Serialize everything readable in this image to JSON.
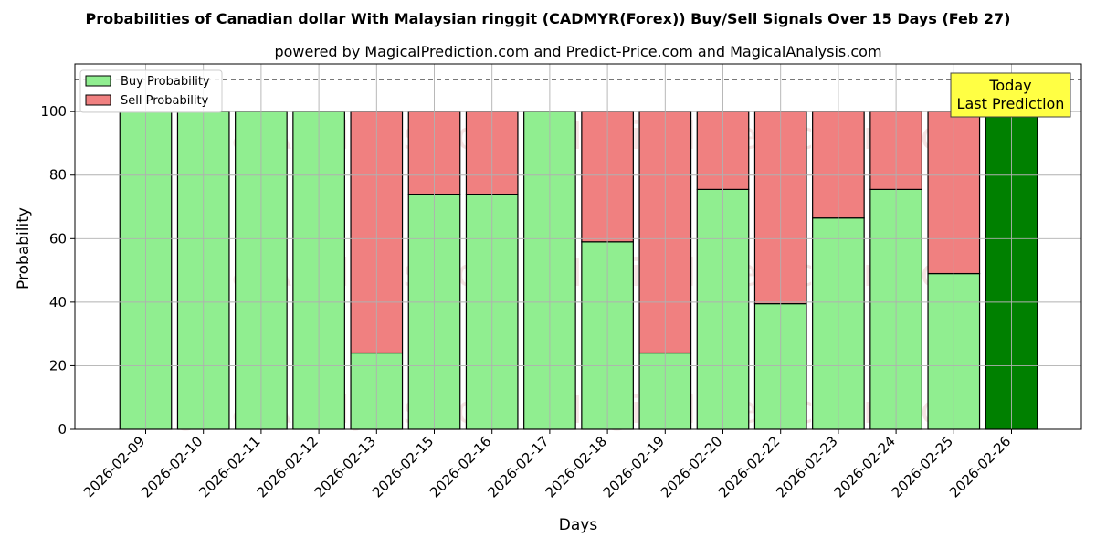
{
  "chart_data": {
    "type": "bar",
    "title": "Probabilities of Canadian dollar With Malaysian ringgit (CADMYR(Forex)) Buy/Sell Signals Over 15 Days (Feb 27)",
    "subtitle": "powered by MagicalPrediction.com and Predict-Price.com and MagicalAnalysis.com",
    "xlabel": "Days",
    "ylabel": "Probability",
    "ylim": [
      0,
      115
    ],
    "yticks": [
      0,
      20,
      40,
      60,
      80,
      100
    ],
    "grid": true,
    "legend_position": "top-left",
    "reference_line": 110,
    "categories": [
      "2026-02-09",
      "2026-02-10",
      "2026-02-11",
      "2026-02-12",
      "2026-02-13",
      "2026-02-15",
      "2026-02-16",
      "2026-02-17",
      "2026-02-18",
      "2026-02-19",
      "2026-02-20",
      "2026-02-22",
      "2026-02-23",
      "2026-02-24",
      "2026-02-25",
      "2026-02-26"
    ],
    "series": [
      {
        "name": "Buy Probability",
        "color": "#90ee90",
        "values": [
          100,
          100,
          100,
          100,
          24,
          74,
          74,
          100,
          59,
          24,
          75.5,
          39.5,
          66.5,
          75.5,
          49,
          100
        ]
      },
      {
        "name": "Sell Probability",
        "color": "#f08080",
        "values": [
          0,
          0,
          0,
          0,
          76,
          26,
          26,
          0,
          41,
          76,
          24.5,
          60.5,
          33.5,
          24.5,
          51,
          0
        ]
      }
    ],
    "highlight": {
      "index": 15,
      "color": "#008000"
    },
    "annotation": {
      "lines": [
        "Today",
        "Last Prediction"
      ]
    },
    "watermarks": [
      "MagicalAnalysis.com",
      "MagicalPrediction.com"
    ]
  }
}
